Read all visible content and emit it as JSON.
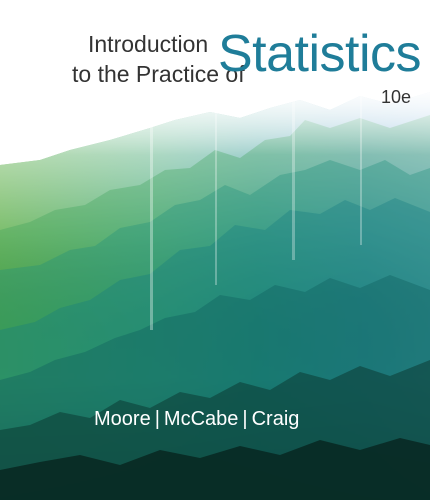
{
  "cover": {
    "title_line1": "Introduction",
    "title_line2": "to the Practice of",
    "title_main": "Statistics",
    "edition": "10e",
    "authors": [
      "Moore",
      "McCabe",
      "Craig"
    ],
    "author_separator": "|"
  },
  "colors": {
    "title_main": "#1f7d99",
    "title_small": "#333333",
    "authors": "#ffffff",
    "art_green": "#5fb13c",
    "art_teal": "#1e8a8c",
    "art_blue": "#3a86c6",
    "art_dark": "#0d2a22"
  }
}
